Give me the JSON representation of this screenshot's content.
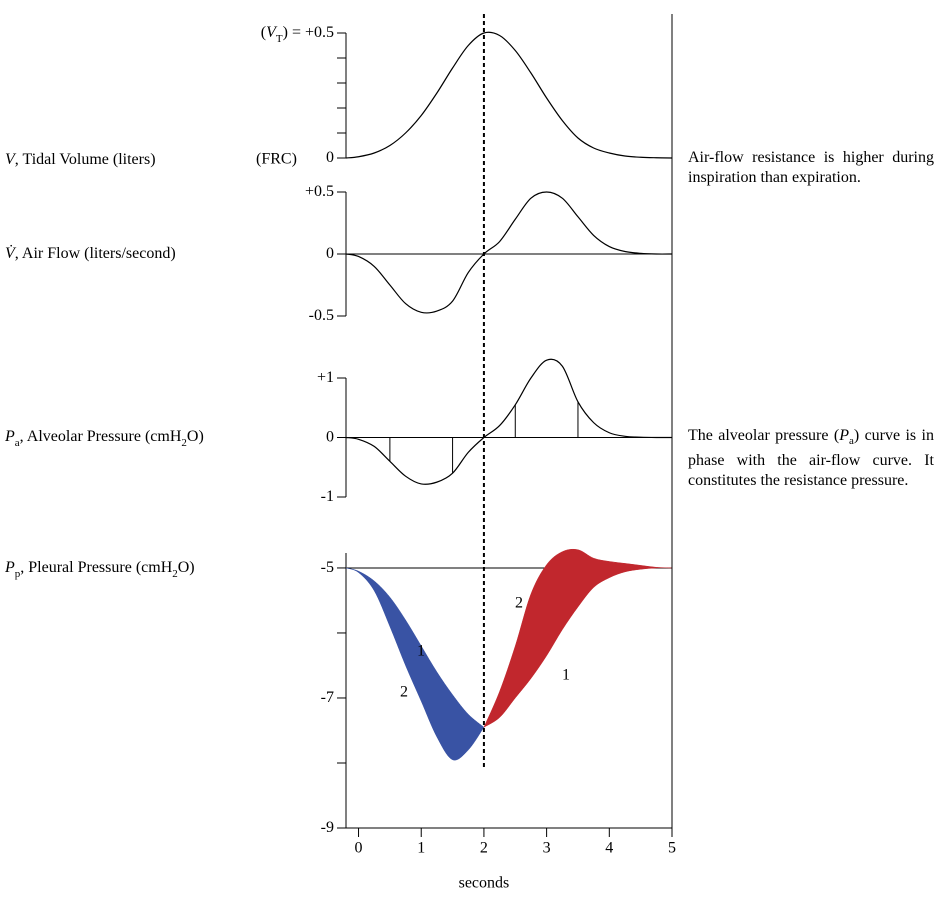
{
  "chart_data": [
    {
      "type": "line",
      "ylabel": [
        {
          "text": "V",
          "style": "italic"
        },
        {
          "text": ", Tidal Volume (liters)"
        }
      ],
      "note": "(FRC)",
      "ytick_prefix": [
        {
          "text": "("
        },
        {
          "text": "V",
          "style": "italic"
        },
        {
          "text": "T",
          "style": "sub"
        },
        {
          "text": ") = "
        }
      ],
      "x": [
        -0.2,
        0,
        0.25,
        0.5,
        0.75,
        1,
        1.25,
        1.5,
        1.75,
        2,
        2.25,
        2.5,
        2.75,
        3,
        3.25,
        3.5,
        3.75,
        4,
        4.25,
        4.5,
        4.75,
        5
      ],
      "values": [
        0,
        0.005,
        0.02,
        0.05,
        0.1,
        0.17,
        0.26,
        0.36,
        0.45,
        0.5,
        0.49,
        0.43,
        0.34,
        0.24,
        0.15,
        0.08,
        0.04,
        0.02,
        0.008,
        0.003,
        0.001,
        0
      ],
      "color": "#000000",
      "xlim": [
        -0.2,
        5
      ],
      "ylim": [
        0,
        0.5
      ],
      "yticks": [
        0,
        {
          "value": 0.5,
          "label": "+0.5"
        }
      ],
      "minor_yticks": [
        0.1,
        0.2,
        0.3,
        0.4
      ],
      "divider_x": 2
    },
    {
      "type": "line",
      "ylabel": [
        {
          "text": "V̇",
          "style": "italic"
        },
        {
          "text": ", Air Flow (liters/second)"
        }
      ],
      "x": [
        -0.2,
        0,
        0.25,
        0.5,
        0.75,
        1,
        1.25,
        1.5,
        1.75,
        2,
        2.25,
        2.5,
        2.75,
        3,
        3.25,
        3.5,
        3.75,
        4,
        4.25,
        4.5,
        4.75,
        5
      ],
      "values": [
        0,
        -0.02,
        -0.1,
        -0.25,
        -0.4,
        -0.47,
        -0.46,
        -0.38,
        -0.15,
        0,
        0.1,
        0.28,
        0.45,
        0.5,
        0.45,
        0.3,
        0.15,
        0.06,
        0.02,
        0.005,
        0,
        0
      ],
      "color": "#000000",
      "xlim": [
        -0.2,
        5
      ],
      "ylim": [
        -0.5,
        0.5
      ],
      "yticks": [
        -0.5,
        0,
        {
          "value": 0.5,
          "label": "+0.5"
        }
      ],
      "baseline": 0
    },
    {
      "type": "line",
      "ylabel": [
        {
          "text": "P",
          "style": "italic"
        },
        {
          "text": "a",
          "style": "sub"
        },
        {
          "text": ", Alveolar Pressure (cmH"
        },
        {
          "text": "2",
          "style": "sub"
        },
        {
          "text": "O)"
        }
      ],
      "x": [
        -0.2,
        0,
        0.25,
        0.5,
        0.75,
        1,
        1.25,
        1.5,
        1.75,
        2,
        2.25,
        2.5,
        2.75,
        3,
        3.25,
        3.5,
        3.75,
        4,
        4.25,
        4.5,
        4.75,
        5
      ],
      "values": [
        0,
        -0.03,
        -0.15,
        -0.4,
        -0.65,
        -0.78,
        -0.75,
        -0.6,
        -0.25,
        0,
        0.2,
        0.55,
        1.0,
        1.3,
        1.2,
        0.6,
        0.25,
        0.08,
        0.02,
        0.005,
        0,
        0
      ],
      "color": "#000000",
      "xlim": [
        -0.2,
        5
      ],
      "ylim": [
        -1,
        1
      ],
      "yticks": [
        -1,
        0,
        {
          "value": 1,
          "label": "+1"
        }
      ],
      "baseline": 0,
      "stem_x": [
        0.5,
        1.5,
        2.5,
        3.5
      ]
    },
    {
      "type": "band",
      "ylabel": [
        {
          "text": "P",
          "style": "italic"
        },
        {
          "text": "p",
          "style": "sub"
        },
        {
          "text": ", Pleural Pressure (cmH"
        },
        {
          "text": "2",
          "style": "sub"
        },
        {
          "text": "O)"
        }
      ],
      "x": [
        -0.2,
        0,
        0.25,
        0.5,
        0.75,
        1,
        1.25,
        1.5,
        1.75,
        2,
        2.25,
        2.5,
        2.75,
        3,
        3.25,
        3.5,
        3.75,
        4,
        4.25,
        4.5,
        4.75,
        5
      ],
      "series": [
        {
          "name": "1",
          "values": [
            -5,
            -5.05,
            -5.2,
            -5.45,
            -5.8,
            -6.2,
            -6.6,
            -6.95,
            -7.25,
            -7.45,
            -7.3,
            -7.0,
            -6.7,
            -6.35,
            -5.95,
            -5.6,
            -5.3,
            -5.15,
            -5.06,
            -5.02,
            -5.0,
            -5
          ]
        },
        {
          "name": "2",
          "values": [
            -5,
            -5.07,
            -5.35,
            -5.9,
            -6.5,
            -7.05,
            -7.6,
            -7.95,
            -7.8,
            -7.45,
            -6.9,
            -6.2,
            -5.4,
            -4.95,
            -4.75,
            -4.72,
            -4.85,
            -4.9,
            -4.93,
            -4.96,
            -4.99,
            -5
          ]
        }
      ],
      "fills": [
        {
          "color": "#3953a4",
          "from": -0.2,
          "to": 2
        },
        {
          "color": "#c1272d",
          "from": 2,
          "to": 5
        }
      ],
      "xlim": [
        -0.2,
        5
      ],
      "ylim": [
        -9,
        -4.77
      ],
      "yticks": [
        -9,
        -7,
        -5
      ],
      "minor_yticks": [
        -8,
        -6
      ],
      "baseline": -5,
      "xticks": [
        0,
        1,
        2,
        3,
        4,
        5
      ],
      "xlabel": "seconds"
    }
  ],
  "annotations": [
    [
      {
        "text": "Air-flow resistance is higher during inspiration than expiration."
      }
    ],
    [
      {
        "text": "The alveolar pressure ("
      },
      {
        "text": "P",
        "style": "italic"
      },
      {
        "text": "a",
        "style": "sub"
      },
      {
        "text": ") curve is in phase with the air-flow curve. It constitutes the resistance pressure."
      }
    ]
  ]
}
